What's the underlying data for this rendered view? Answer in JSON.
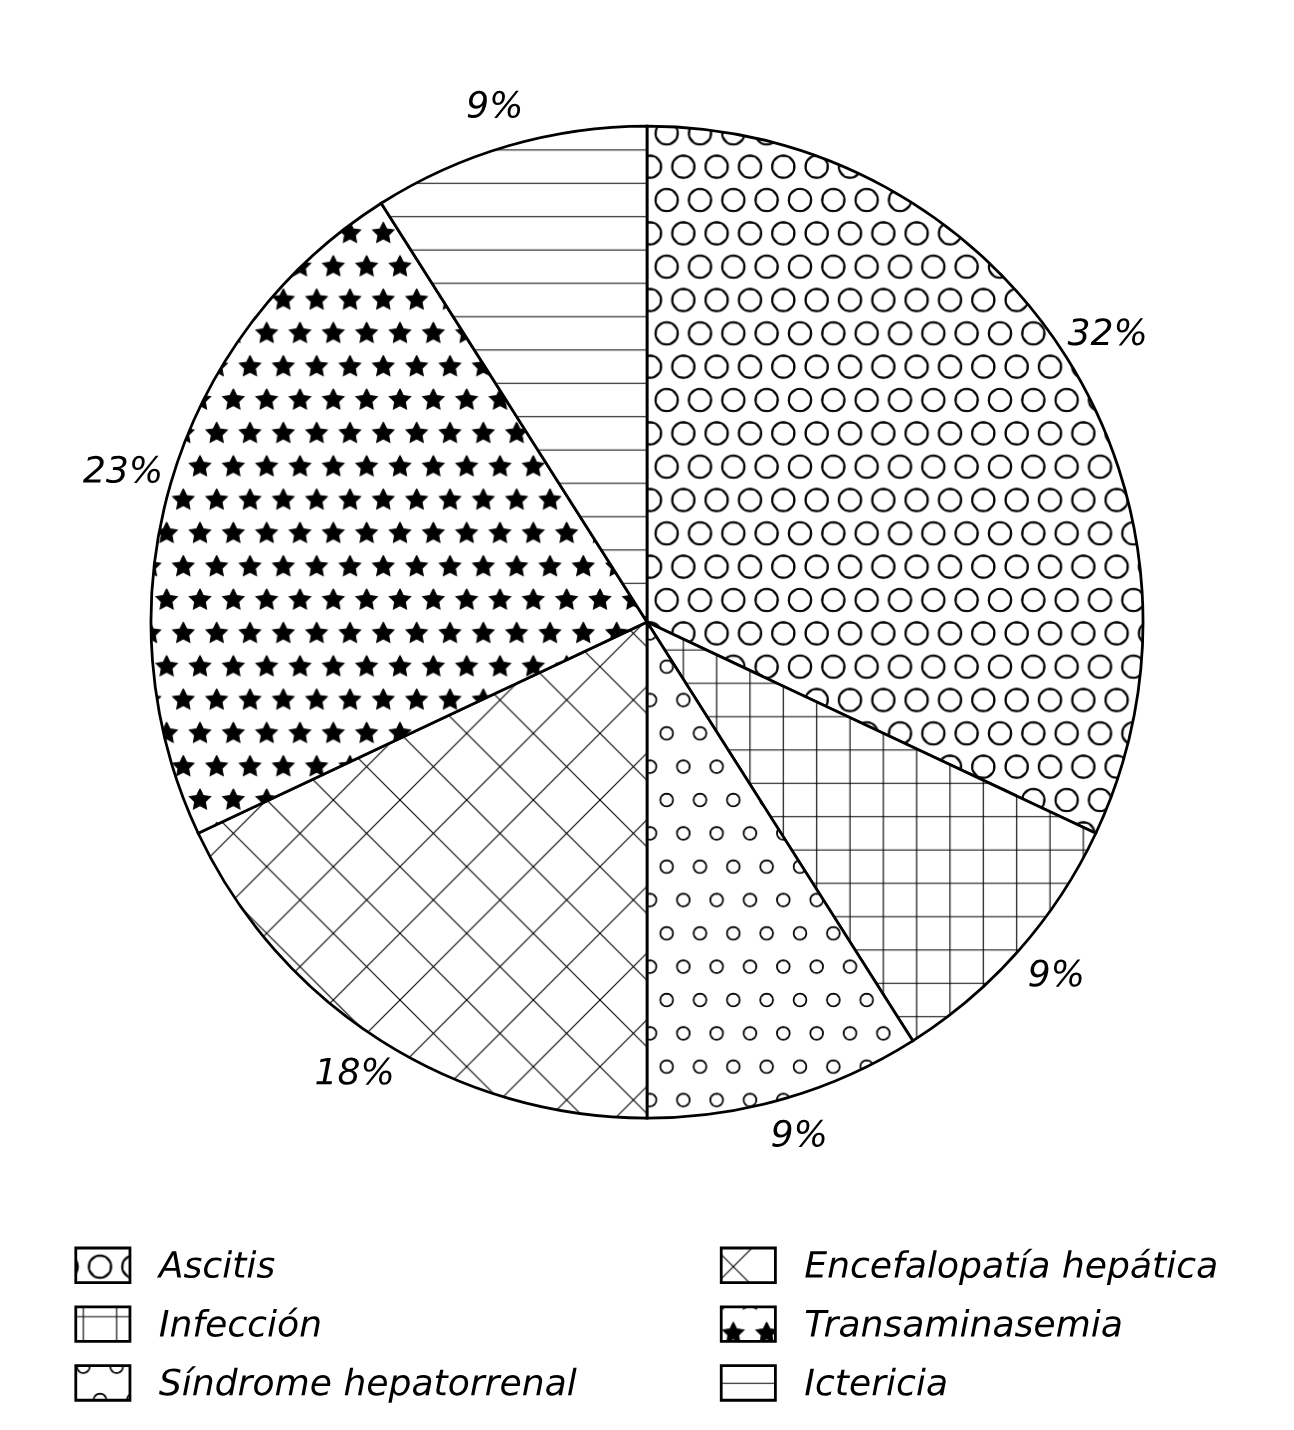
{
  "chart_data": {
    "type": "pie",
    "categories": [
      "Ascitis",
      "Infección",
      "Síndrome hepatorrenal",
      "Encefalopatía hepática",
      "Transaminasemia",
      "Ictericia"
    ],
    "values": [
      32,
      9,
      9,
      18,
      23,
      9
    ],
    "value_labels": [
      "32%",
      "9%",
      "9%",
      "18%",
      "23%",
      "9%"
    ],
    "legend": "bottom"
  }
}
